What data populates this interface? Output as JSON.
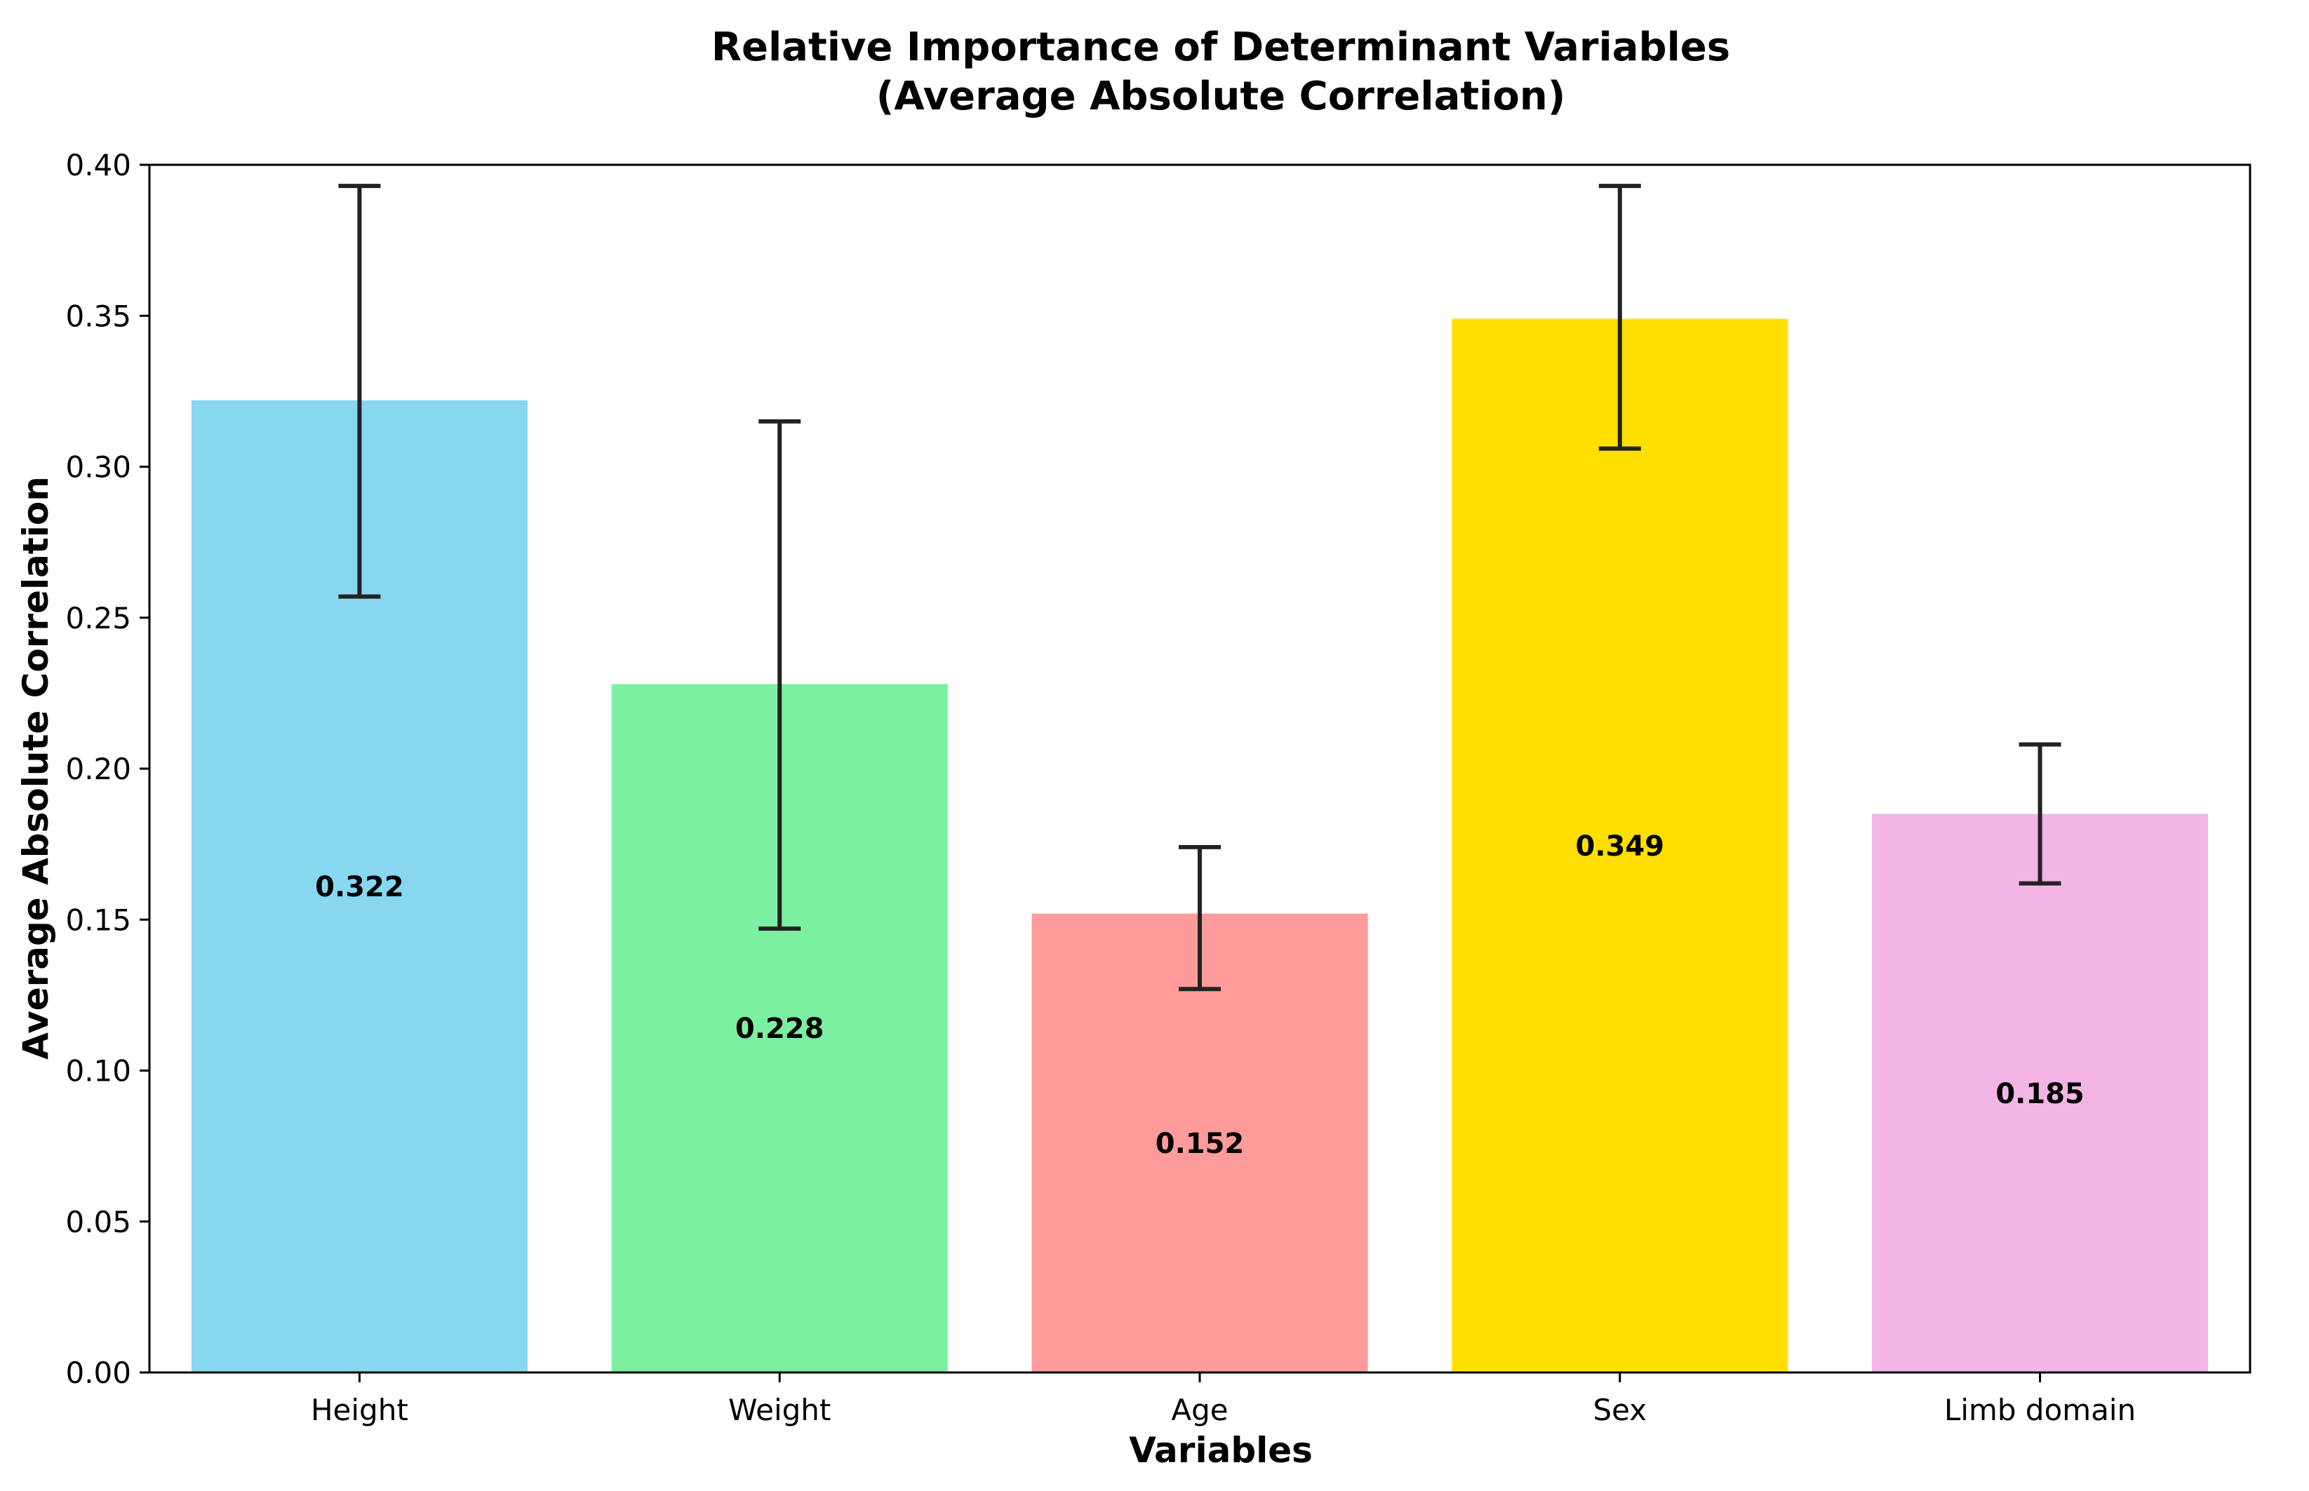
{
  "chart_data": {
    "type": "bar",
    "title_lines": [
      "Relative Importance of Determinant Variables",
      "(Average Absolute Correlation)"
    ],
    "xlabel": "Variables",
    "ylabel": "Average Absolute Correlation",
    "categories": [
      "Height",
      "Weight",
      "Age",
      "Sex",
      "Limb domain"
    ],
    "values": [
      0.322,
      0.228,
      0.152,
      0.349,
      0.185
    ],
    "value_labels": [
      "0.322",
      "0.228",
      "0.152",
      "0.349",
      "0.185"
    ],
    "error_low": [
      0.257,
      0.147,
      0.127,
      0.306,
      0.162
    ],
    "error_high": [
      0.393,
      0.315,
      0.174,
      0.393,
      0.208
    ],
    "colors": [
      "#87d7f0",
      "#7af0a0",
      "#ff9b9b",
      "#ffdf00",
      "#f2b5e5"
    ],
    "ylim": [
      0,
      0.4
    ],
    "yticks": [
      0.0,
      0.05,
      0.1,
      0.15,
      0.2,
      0.25,
      0.3,
      0.35,
      0.4
    ],
    "ytick_labels": [
      "0.00",
      "0.05",
      "0.10",
      "0.15",
      "0.20",
      "0.25",
      "0.30",
      "0.35",
      "0.40"
    ],
    "grid": false,
    "legend": "none"
  }
}
